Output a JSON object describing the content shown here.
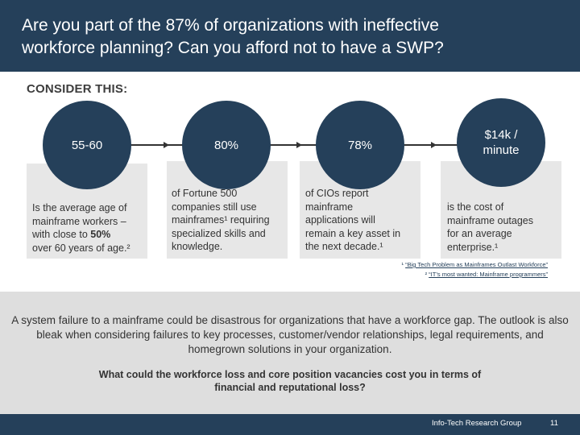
{
  "header": {
    "title_line1": "Are you part of the 87% of organizations with ineffective",
    "title_line2": "workforce planning? Can you afford not to have a SWP?"
  },
  "section_label": "CONSIDER THIS:",
  "stats": [
    {
      "value": "55-60",
      "desc": [
        "Is the average age of",
        "mainframe workers –",
        "with close to 50%",
        "over 60 years of age.²"
      ]
    },
    {
      "value": "80%",
      "desc": [
        "of Fortune 500",
        "companies still use",
        "mainframes¹ requiring",
        "specialized skills and",
        "knowledge."
      ]
    },
    {
      "value": "78%",
      "desc": [
        "of CIOs report",
        "mainframe",
        "applications will",
        "remain a key asset in",
        "the next decade.¹"
      ]
    },
    {
      "value_line1": "$14k /",
      "value_line2": "minute",
      "desc": [
        "is the cost of",
        "mainframe outages",
        "for an average",
        "enterprise.¹"
      ]
    }
  ],
  "footnotes": [
    {
      "marker": "¹",
      "text": "“Big Tech Problem as Mainframes Outlast Workforce”"
    },
    {
      "marker": "²",
      "text": "“IT’s most wanted: Mainframe programmers”"
    }
  ],
  "paragraph": "A system failure to a mainframe could be disastrous for organizations that have a workforce gap. The outlook is also bleak when considering failures to key processes, customer/vendor relationships, legal requirements, and homegrown solutions in your organization.",
  "question_line1": "What could the workforce loss and core position vacancies cost you in terms of",
  "question_line2": "financial and reputational loss?",
  "footer": {
    "brand": "Info-Tech Research Group",
    "page": "11"
  },
  "colors": {
    "navy": "#25405a",
    "card": "#e7e7e7",
    "band": "#dedede"
  }
}
